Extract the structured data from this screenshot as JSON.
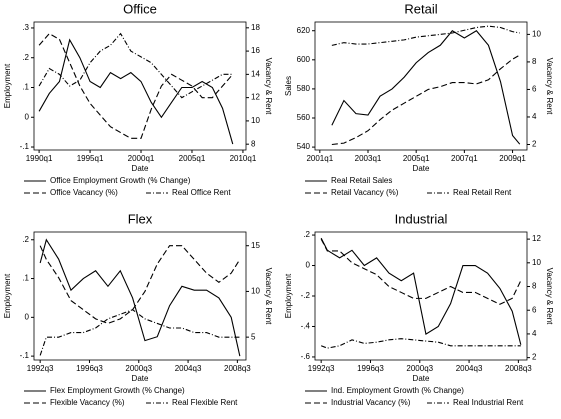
{
  "chart_data": [
    {
      "type": "line",
      "title": "Office",
      "x_label": "Date",
      "y_label": "Employment",
      "y2_label": "Vacancy & Rent",
      "x": [
        1990,
        1991,
        1992,
        1993,
        1994,
        1995,
        1996,
        1997,
        1998,
        1999,
        2000,
        2001,
        2002,
        2003,
        2004,
        2005,
        2006,
        2007,
        2008,
        2009
      ],
      "xlim": [
        1989.5,
        2010.3
      ],
      "xticks": [
        {
          "value": 1990,
          "label": "1990q1"
        },
        {
          "value": 1995,
          "label": "1995q1"
        },
        {
          "value": 2000,
          "label": "2000q1"
        },
        {
          "value": 2005,
          "label": "2005q1"
        },
        {
          "value": 2010,
          "label": "2010q1"
        }
      ],
      "ylim": [
        -0.11,
        0.32
      ],
      "yticks": [
        {
          "value": -0.1,
          "label": "-.1"
        },
        0,
        {
          "value": 0.1,
          "label": ".1"
        },
        {
          "value": 0.2,
          "label": ".2"
        },
        {
          "value": 0.3,
          "label": ".3"
        }
      ],
      "y2lim": [
        7.5,
        18.5
      ],
      "y2ticks": [
        8,
        10,
        12,
        14,
        16,
        18
      ],
      "series": [
        {
          "name": "Office Employment Growth (% Change)",
          "color": "#000000",
          "dash": "solid",
          "values": [
            0.02,
            0.08,
            0.12,
            0.26,
            0.2,
            0.12,
            0.1,
            0.15,
            0.13,
            0.15,
            0.12,
            0.05,
            0.0,
            0.05,
            0.1,
            0.1,
            0.12,
            0.1,
            0.03,
            -0.09
          ]
        },
        {
          "name": "Office Vacancy (%)",
          "color": "#000000",
          "dash": "dashed",
          "axis": "y2",
          "values": [
            16.5,
            17.5,
            17,
            15,
            13,
            11.5,
            10.5,
            9.5,
            9,
            8.5,
            8.5,
            11,
            13,
            14,
            13.5,
            13,
            12,
            12,
            13,
            14
          ]
        },
        {
          "name": "Real Office Rent",
          "color": "#000000",
          "dash": "dotdash",
          "axis": "y2",
          "values": [
            13,
            14.5,
            14,
            13,
            13.5,
            15,
            16,
            16.5,
            17.5,
            16,
            15.5,
            15,
            14,
            13,
            12,
            12.5,
            13,
            13.5,
            14,
            14
          ]
        }
      ]
    },
    {
      "type": "line",
      "title": "Retail",
      "x_label": "Date",
      "y_label": "Sales",
      "y2_label": "Vacancy & Rent",
      "x": [
        2001.5,
        2002,
        2002.5,
        2003,
        2003.5,
        2004,
        2004.5,
        2005,
        2005.5,
        2006,
        2006.5,
        2007,
        2007.5,
        2008,
        2008.5,
        2009,
        2009.3
      ],
      "xlim": [
        2000.8,
        2009.6
      ],
      "xticks": [
        {
          "value": 2001,
          "label": "2001q1"
        },
        {
          "value": 2003,
          "label": "2003q1"
        },
        {
          "value": 2005,
          "label": "2005q1"
        },
        {
          "value": 2007,
          "label": "2007q1"
        },
        {
          "value": 2009,
          "label": "2009q1"
        }
      ],
      "ylim": [
        538,
        626
      ],
      "yticks": [
        540,
        560,
        580,
        600,
        620
      ],
      "y2lim": [
        1.6,
        10.9
      ],
      "y2ticks": [
        2,
        4,
        6,
        8,
        10
      ],
      "series": [
        {
          "name": "Real Retail Sales",
          "color": "#000000",
          "dash": "solid",
          "values": [
            555,
            572,
            563,
            562,
            575,
            580,
            588,
            598,
            605,
            610,
            620,
            615,
            620,
            610,
            585,
            548,
            542
          ]
        },
        {
          "name": "Retail Vacancy (%)",
          "color": "#000000",
          "dash": "dashed",
          "axis": "y2",
          "values": [
            2,
            2.1,
            2.5,
            3,
            3.8,
            4.5,
            5,
            5.5,
            6,
            6.2,
            6.5,
            6.5,
            6.4,
            6.7,
            7.5,
            8.2,
            8.5
          ]
        },
        {
          "name": "Real Retail Rent",
          "color": "#000000",
          "dash": "dotdash",
          "axis": "y2",
          "values": [
            9.2,
            9.4,
            9.3,
            9.3,
            9.4,
            9.5,
            9.6,
            9.8,
            9.9,
            10,
            10.1,
            10.3,
            10.5,
            10.6,
            10.5,
            10.2,
            10.1
          ]
        }
      ]
    },
    {
      "type": "line",
      "title": "Flex",
      "x_label": "Date",
      "y_label": "Employment",
      "y2_label": "Vacancy & Rent",
      "x": [
        1992.5,
        1993,
        1994,
        1995,
        1996,
        1997,
        1998,
        1999,
        2000,
        2001,
        2002,
        2003,
        2004,
        2005,
        2006,
        2007,
        2008,
        2008.7
      ],
      "xlim": [
        1992,
        2009.2
      ],
      "xticks": [
        {
          "value": 1992.5,
          "label": "1992q3"
        },
        {
          "value": 1996.5,
          "label": "1996q3"
        },
        {
          "value": 2000.5,
          "label": "2000q3"
        },
        {
          "value": 2004.5,
          "label": "2004q3"
        },
        {
          "value": 2008.5,
          "label": "2008q3"
        }
      ],
      "ylim": [
        -0.11,
        0.22
      ],
      "yticks": [
        {
          "value": -0.1,
          "label": "-.1"
        },
        0,
        {
          "value": 0.1,
          "label": ".1"
        },
        {
          "value": 0.2,
          "label": ".2"
        }
      ],
      "y2lim": [
        2.5,
        16.5
      ],
      "y2ticks": [
        5,
        10,
        15
      ],
      "series": [
        {
          "name": "Flex Employment Growth (% Change)",
          "color": "#000000",
          "dash": "solid",
          "values": [
            0.14,
            0.2,
            0.15,
            0.07,
            0.1,
            0.12,
            0.08,
            0.12,
            0.05,
            -0.06,
            -0.05,
            0.03,
            0.08,
            0.07,
            0.07,
            0.05,
            0.0,
            -0.1
          ]
        },
        {
          "name": "Flexible Vacancy (%)",
          "color": "#000000",
          "dash": "dashed",
          "axis": "y2",
          "values": [
            15,
            13.5,
            11.5,
            9,
            8,
            7,
            6.5,
            7,
            8,
            10,
            13,
            15,
            15,
            13.5,
            12,
            11,
            12,
            13.5
          ]
        },
        {
          "name": "Real Flexible Rent",
          "color": "#000000",
          "dash": "dotdash",
          "axis": "y2",
          "values": [
            3,
            5,
            5,
            5.5,
            5.5,
            6,
            7,
            7.5,
            8,
            7,
            6.5,
            6,
            6,
            5.5,
            5.5,
            5,
            5,
            5
          ]
        }
      ]
    },
    {
      "type": "line",
      "title": "Industrial",
      "x_label": "Date",
      "y_label": "Employment",
      "y2_label": "Vacancy & Rent",
      "x": [
        1992.5,
        1993,
        1994,
        1995,
        1996,
        1997,
        1998,
        1999,
        2000,
        2001,
        2002,
        2003,
        2004,
        2005,
        2006,
        2007,
        2008,
        2008.7
      ],
      "xlim": [
        1992,
        2009.2
      ],
      "xticks": [
        {
          "value": 1992.5,
          "label": "1992q3"
        },
        {
          "value": 1996.5,
          "label": "1996q3"
        },
        {
          "value": 2000.5,
          "label": "2000q3"
        },
        {
          "value": 2004.5,
          "label": "2004q3"
        },
        {
          "value": 2008.5,
          "label": "2008q3"
        }
      ],
      "ylim": [
        -0.62,
        0.22
      ],
      "yticks": [
        {
          "value": -0.6,
          "label": "-.6"
        },
        {
          "value": -0.4,
          "label": "-.4"
        },
        {
          "value": -0.2,
          "label": "-.2"
        },
        0,
        {
          "value": 0.2,
          "label": ".2"
        }
      ],
      "y2lim": [
        1.8,
        12.6
      ],
      "y2ticks": [
        2,
        4,
        6,
        8,
        10,
        12
      ],
      "series": [
        {
          "name": "Ind. Employment Growth (% Change)",
          "color": "#000000",
          "dash": "solid",
          "values": [
            0.18,
            0.1,
            0.05,
            0.1,
            0,
            0.05,
            -0.05,
            -0.1,
            -0.05,
            -0.45,
            -0.4,
            -0.25,
            0,
            0,
            -0.05,
            -0.15,
            -0.3,
            -0.52
          ]
        },
        {
          "name": "Industrial Vacancy (%)",
          "color": "#000000",
          "dash": "dashed",
          "axis": "y2",
          "values": [
            12,
            11,
            11,
            10,
            9.5,
            9,
            8,
            7.5,
            7,
            7,
            7.5,
            8,
            7.5,
            7.5,
            7,
            6.5,
            7,
            8.5
          ]
        },
        {
          "name": "Real Industrial Rent",
          "color": "#000000",
          "dash": "dotdash",
          "axis": "y2",
          "values": [
            3,
            2.8,
            3,
            3.5,
            3.2,
            3.3,
            3.5,
            3.6,
            3.5,
            3.4,
            3.3,
            3,
            3,
            3,
            3,
            3,
            3,
            3
          ]
        }
      ]
    }
  ]
}
